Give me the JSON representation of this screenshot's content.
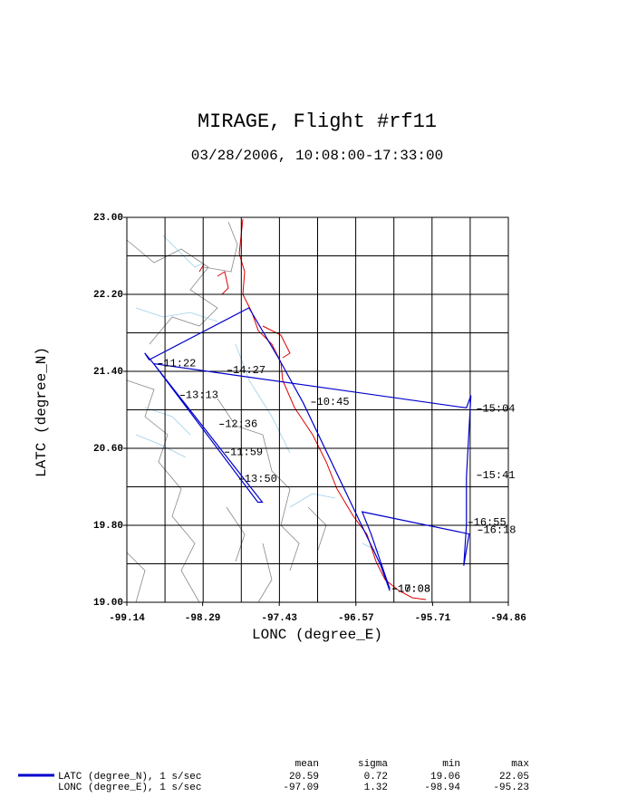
{
  "chart_data": {
    "type": "line",
    "title": "MIRAGE, Flight #rf11",
    "subtitle": "03/28/2006, 10:08:00-17:33:00",
    "x_label": "LONC (degree_E)",
    "y_label": "LATC (degree_N)",
    "xlim": [
      -99.14,
      -94.86
    ],
    "ylim": [
      19.0,
      23.0
    ],
    "xticks": [
      -99.14,
      -98.29,
      -97.43,
      -96.57,
      -95.71,
      -94.86
    ],
    "yticks": [
      {
        "value": 19,
        "label": "19.00"
      },
      {
        "value": 19.8,
        "label": "19.80"
      },
      {
        "value": 20.6,
        "label": "20.60"
      },
      {
        "value": 21.4,
        "label": "21.40"
      },
      {
        "value": 22.2,
        "label": "22.20"
      },
      {
        "value": 23,
        "label": "23.00"
      }
    ],
    "xgrid": [
      -99.14,
      -98.712,
      -98.284,
      -97.856,
      -97.428,
      -97.0,
      -96.572,
      -96.144,
      -95.716,
      -95.288,
      -94.86
    ],
    "ygrid": [
      19.0,
      19.4,
      19.8,
      20.2,
      20.6,
      21.0,
      21.4,
      21.8,
      22.2,
      22.6,
      23.0
    ],
    "grid": true,
    "series": [
      {
        "name": "LATC (degree_N), 1 s/sec",
        "color": "#0000cc",
        "x": [
          -96.19,
          -96.29,
          -97.16,
          -97.44,
          -97.77,
          -98.89,
          -98.94,
          -98.84,
          -97.67,
          -97.62,
          -98.84,
          -95.33,
          -95.28,
          -95.33,
          -95.33,
          -95.36,
          -95.3,
          -96.5,
          -96.4,
          -96.19
        ],
        "values": [
          19.12,
          19.38,
          21.07,
          21.54,
          22.06,
          21.52,
          21.59,
          21.48,
          20.04,
          20.04,
          21.48,
          21.02,
          21.15,
          20.3,
          19.8,
          19.38,
          19.71,
          19.94,
          19.71,
          19.14
        ]
      }
    ],
    "annotations": [
      {
        "text": "11:22",
        "x": -98.74,
        "y": 21.48
      },
      {
        "text": "14:27",
        "x": -97.96,
        "y": 21.41
      },
      {
        "text": "13:13",
        "x": -98.49,
        "y": 21.15
      },
      {
        "text": "12:36",
        "x": -98.05,
        "y": 20.85
      },
      {
        "text": "11:59",
        "x": -97.99,
        "y": 20.56
      },
      {
        "text": "13:50",
        "x": -97.83,
        "y": 20.28
      },
      {
        "text": "10:45",
        "x": -97.02,
        "y": 21.08
      },
      {
        "text": "15:04",
        "x": -95.16,
        "y": 21.01
      },
      {
        "text": "15:41",
        "x": -95.16,
        "y": 20.32
      },
      {
        "text": "16:55",
        "x": -95.26,
        "y": 19.83
      },
      {
        "text": "16:18",
        "x": -95.15,
        "y": 19.75
      },
      {
        "text": "17:03",
        "x": -96.11,
        "y": 19.14
      },
      {
        "text": "10:08",
        "x": -96.11,
        "y": 19.14
      }
    ],
    "stats": {
      "columns": [
        "mean",
        "sigma",
        "min",
        "max"
      ],
      "rows": [
        {
          "values": [
            20.59,
            0.72,
            19.06,
            22.05
          ]
        },
        {
          "label": "LONC (degree_E), 1 s/sec",
          "values": [
            -97.09,
            1.32,
            -98.94,
            -95.23
          ]
        }
      ]
    }
  }
}
